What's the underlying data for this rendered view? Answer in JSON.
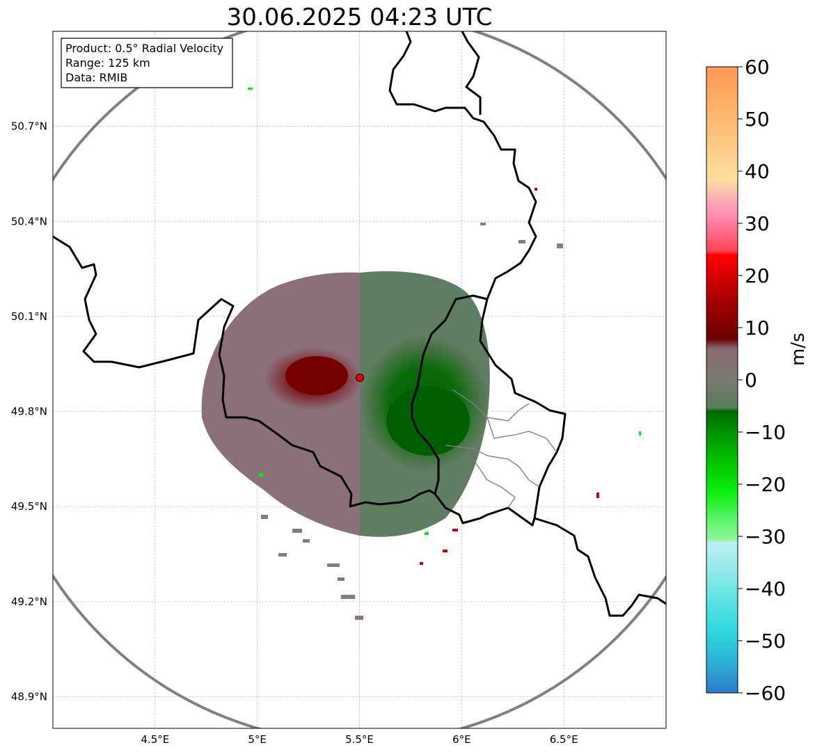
{
  "title": "30.06.2025 04:23 UTC",
  "info_box": {
    "product": "Product: 0.5° Radial Velocity",
    "range": "Range: 125 km",
    "data": "Data: RMIB"
  },
  "axes": {
    "lat_ticks": [
      "50.7°N",
      "50.4°N",
      "50.1°N",
      "49.8°N",
      "49.5°N",
      "49.2°N",
      "48.9°N"
    ],
    "lon_ticks": [
      "4.5°E",
      "5°E",
      "5.5°E",
      "6°E",
      "6.5°E"
    ],
    "lat_range": [
      48.8,
      51.0
    ],
    "lon_range": [
      4.0,
      7.0
    ],
    "gridlines": true
  },
  "radar": {
    "lon": 5.505,
    "lat": 49.915,
    "range_km": 125
  },
  "colorbar": {
    "label": "m/s",
    "ticks": [
      "60",
      "50",
      "40",
      "30",
      "20",
      "10",
      "0",
      "−10",
      "−20",
      "−30",
      "−40",
      "−50",
      "−60"
    ],
    "range": [
      -60,
      60
    ],
    "colors": {
      "far_positive": "#ff9955",
      "positive": "#e00000",
      "weak_positive": "#7a0000",
      "near_zero": "#8a6f78",
      "weak_negative": "#5d7a5d",
      "negative": "#006400",
      "strong_negative": "#00dd00",
      "very_strong_negative": "#2ed5e0",
      "far_negative": "#2878c8"
    }
  }
}
